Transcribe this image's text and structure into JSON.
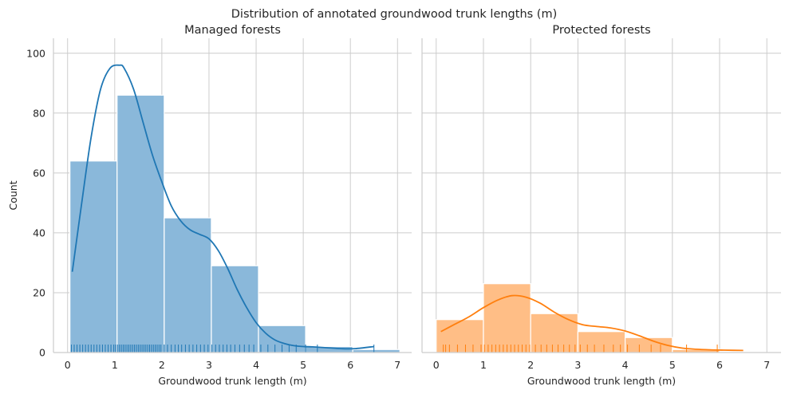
{
  "figure": {
    "title": "Distribution of annotated groundwood trunk lengths (m)"
  },
  "chart_data": [
    {
      "type": "bar",
      "title": "Managed forests",
      "xlabel": "Groundwood trunk length (m)",
      "ylabel": "Count",
      "xlim": [
        -0.3,
        7.3
      ],
      "ylim": [
        0,
        105
      ],
      "xticks": [
        0,
        1,
        2,
        3,
        4,
        5,
        6,
        7
      ],
      "yticks": [
        0,
        20,
        40,
        60,
        80,
        100
      ],
      "grid": true,
      "color": "#1f77b4",
      "bar_color": "#8ab8da",
      "bins": [
        {
          "x0": 0.05,
          "x1": 1.05,
          "count": 64
        },
        {
          "x0": 1.05,
          "x1": 2.05,
          "count": 86
        },
        {
          "x0": 2.05,
          "x1": 3.05,
          "count": 45
        },
        {
          "x0": 3.05,
          "x1": 4.05,
          "count": 29
        },
        {
          "x0": 4.05,
          "x1": 5.05,
          "count": 9
        },
        {
          "x0": 5.05,
          "x1": 6.05,
          "count": 2
        },
        {
          "x0": 6.05,
          "x1": 7.05,
          "count": 1
        }
      ],
      "kde": {
        "x": [
          0.1,
          0.3,
          0.5,
          0.7,
          0.9,
          1.1,
          1.2,
          1.4,
          1.6,
          1.8,
          2.0,
          2.2,
          2.4,
          2.6,
          2.8,
          3.0,
          3.2,
          3.4,
          3.6,
          3.8,
          4.0,
          4.2,
          4.4,
          4.6,
          4.8,
          5.0,
          5.2,
          5.5,
          5.8,
          6.1,
          6.5
        ],
        "y": [
          27,
          50,
          72,
          88,
          95,
          96,
          95,
          88,
          77,
          66,
          57,
          49,
          44,
          41,
          39.5,
          38,
          34,
          28,
          21,
          15,
          10,
          6.5,
          4.2,
          3,
          2.3,
          2,
          1.9,
          1.6,
          1.3,
          1.3,
          2
        ]
      },
      "rug": [
        0.08,
        0.14,
        0.2,
        0.26,
        0.32,
        0.38,
        0.44,
        0.5,
        0.56,
        0.62,
        0.68,
        0.74,
        0.8,
        0.86,
        0.92,
        0.98,
        1.02,
        1.06,
        1.1,
        1.14,
        1.18,
        1.22,
        1.26,
        1.3,
        1.34,
        1.38,
        1.42,
        1.46,
        1.5,
        1.54,
        1.58,
        1.62,
        1.66,
        1.7,
        1.74,
        1.78,
        1.82,
        1.86,
        1.9,
        1.94,
        1.98,
        2.05,
        2.12,
        2.2,
        2.28,
        2.35,
        2.42,
        2.5,
        2.58,
        2.66,
        2.74,
        2.82,
        2.9,
        2.98,
        3.06,
        3.14,
        3.22,
        3.3,
        3.38,
        3.46,
        3.55,
        3.65,
        3.75,
        3.85,
        3.95,
        4.1,
        4.25,
        4.4,
        4.55,
        4.7,
        4.85,
        5.05,
        5.3,
        6.5
      ]
    },
    {
      "type": "bar",
      "title": "Protected forests",
      "xlabel": "Groundwood trunk length (m)",
      "ylabel": "",
      "xlim": [
        -0.3,
        7.3
      ],
      "ylim": [
        0,
        105
      ],
      "xticks": [
        0,
        1,
        2,
        3,
        4,
        5,
        6,
        7
      ],
      "yticks": [
        0,
        20,
        40,
        60,
        80,
        100
      ],
      "grid": true,
      "color": "#ff7f0e",
      "bar_color": "#ffbe86",
      "bins": [
        {
          "x0": 0.0,
          "x1": 1.0,
          "count": 11
        },
        {
          "x0": 1.0,
          "x1": 2.0,
          "count": 23
        },
        {
          "x0": 2.0,
          "x1": 3.0,
          "count": 13
        },
        {
          "x0": 3.0,
          "x1": 4.0,
          "count": 7
        },
        {
          "x0": 4.0,
          "x1": 5.0,
          "count": 5
        },
        {
          "x0": 5.0,
          "x1": 6.0,
          "count": 1
        },
        {
          "x0": 6.0,
          "x1": 7.0,
          "count": 0
        }
      ],
      "kde": {
        "x": [
          0.1,
          0.4,
          0.7,
          1.0,
          1.3,
          1.6,
          1.9,
          2.2,
          2.5,
          2.8,
          3.1,
          3.4,
          3.7,
          4.0,
          4.3,
          4.6,
          4.9,
          5.2,
          5.5,
          5.8,
          6.1,
          6.5
        ],
        "y": [
          7,
          9.5,
          12,
          15,
          17.5,
          19,
          18.5,
          16.5,
          13.5,
          11,
          9.3,
          8.7,
          8.2,
          7.2,
          5.6,
          3.8,
          2.4,
          1.5,
          1.1,
          0.9,
          0.8,
          0.7
        ]
      },
      "rug": [
        0.15,
        0.2,
        0.28,
        0.45,
        0.62,
        0.78,
        0.95,
        1.02,
        1.1,
        1.18,
        1.26,
        1.34,
        1.42,
        1.5,
        1.58,
        1.66,
        1.74,
        1.82,
        1.9,
        1.98,
        2.1,
        2.22,
        2.34,
        2.46,
        2.58,
        2.7,
        2.82,
        2.94,
        3.05,
        3.2,
        3.35,
        3.55,
        3.75,
        3.9,
        4.05,
        4.3,
        4.55,
        4.75,
        5.3,
        5.95
      ]
    }
  ]
}
